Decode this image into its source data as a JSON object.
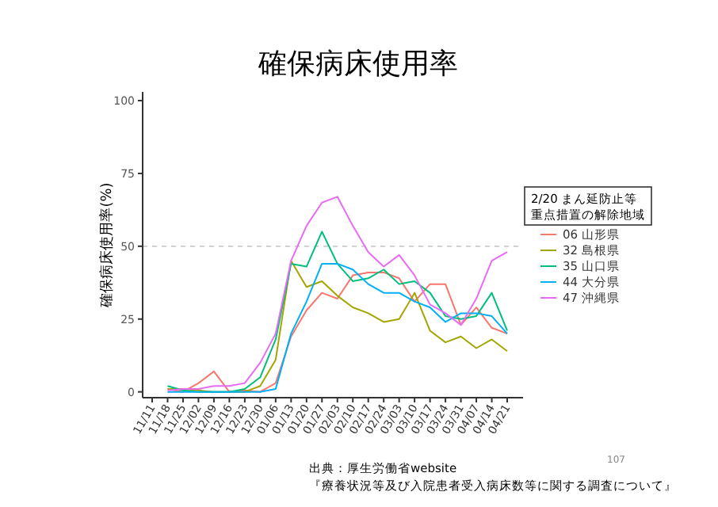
{
  "chart_data": {
    "type": "line",
    "title": "確保病床使用率",
    "ylabel": "確保病床使用率(%)",
    "legend_title": "2/20 まん延防止等重点措置の解除地域",
    "categories": [
      "11/11",
      "11/18",
      "11/25",
      "12/02",
      "12/09",
      "12/16",
      "12/23",
      "12/30",
      "01/06",
      "01/13",
      "01/20",
      "01/27",
      "02/03",
      "02/10",
      "02/17",
      "02/24",
      "03/03",
      "03/10",
      "03/17",
      "03/24",
      "03/31",
      "04/07",
      "04/14",
      "04/21"
    ],
    "series": [
      {
        "name": "06 山形県",
        "color": "#f8766d",
        "values": [
          null,
          1,
          0,
          3,
          7,
          0,
          0.5,
          0,
          3,
          19,
          28,
          34,
          32,
          40,
          41,
          41,
          39,
          31,
          37,
          37,
          23,
          29,
          22,
          20
        ]
      },
      {
        "name": "32 島根県",
        "color": "#a3a500",
        "values": [
          null,
          1,
          1,
          0.5,
          0,
          0,
          0,
          2,
          11,
          45,
          36,
          38,
          33,
          29,
          27,
          24,
          25,
          34,
          21,
          17,
          19,
          15,
          18,
          14
        ]
      },
      {
        "name": "35 山口県",
        "color": "#00bf7d",
        "values": [
          null,
          2,
          0.5,
          0,
          0,
          0,
          1,
          5,
          18,
          44,
          43,
          55,
          44,
          38,
          39,
          42,
          37,
          38,
          34,
          26,
          25,
          26,
          34,
          21
        ]
      },
      {
        "name": "44 大分県",
        "color": "#00b0f6",
        "values": [
          null,
          0,
          0,
          0,
          0,
          0,
          0,
          0,
          1,
          20,
          31,
          44,
          44,
          42,
          37,
          34,
          34,
          31,
          29,
          24,
          27,
          27,
          26,
          20
        ]
      },
      {
        "name": "47 沖縄県",
        "color": "#e76bf3",
        "values": [
          null,
          0.5,
          1,
          1,
          2,
          2,
          3,
          10,
          20,
          45,
          57,
          65,
          67,
          57,
          48,
          43,
          47,
          40,
          30,
          27,
          23,
          32,
          45,
          48
        ]
      }
    ],
    "ylim": [
      -2,
      103
    ],
    "yticks": [
      0,
      25,
      50,
      75,
      100
    ],
    "grid": false,
    "legend": "right",
    "line_style": "solid",
    "marker": "none",
    "ref_lines": [
      {
        "axis": "y",
        "value": 50,
        "color": "#cccccc",
        "line_style": "dashed"
      }
    ],
    "annotations": [
      "出典：厚生労働省website",
      "『療養状況等及び入院患者受入病床数等に関する調査について』",
      "107"
    ]
  }
}
